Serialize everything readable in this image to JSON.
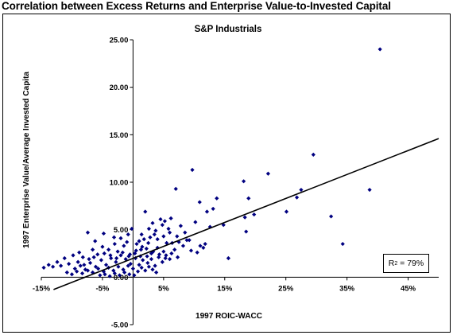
{
  "title": "Correlation between Excess Returns and Enterprise Value-to-Invested Capital",
  "chart_data": {
    "type": "scatter",
    "title": "S&P Industrials",
    "xlabel": "1997 ROIC-WACC",
    "ylabel": "1997 Enterprise Value/Average Invested Capita",
    "xlim": [
      -0.15,
      0.5
    ],
    "ylim": [
      -5,
      25
    ],
    "x_ticks": [
      "-15%",
      "-5%",
      "5%",
      "15%",
      "25%",
      "35%",
      "45%"
    ],
    "x_tick_values": [
      -0.15,
      -0.05,
      0.05,
      0.15,
      0.25,
      0.35,
      0.45
    ],
    "y_ticks": [
      "25.00",
      "20.00",
      "15.00",
      "10.00",
      "5.00",
      "0.00",
      "-5.00"
    ],
    "y_tick_values": [
      25,
      20,
      15,
      10,
      5,
      0,
      -5
    ],
    "trendline": {
      "x": [
        -0.13,
        0.5
      ],
      "y": [
        -1.3,
        14.6
      ]
    },
    "annotation": {
      "label": "R",
      "sup": "2",
      "rest": " = 79%"
    },
    "marker_color": "#000080",
    "line_color": "#000000",
    "points": [
      [
        0.404,
        24.0
      ],
      [
        0.295,
        12.9
      ],
      [
        0.097,
        11.3
      ],
      [
        0.221,
        10.9
      ],
      [
        0.181,
        10.1
      ],
      [
        0.275,
        9.2
      ],
      [
        0.387,
        9.2
      ],
      [
        0.07,
        9.3
      ],
      [
        0.137,
        8.3
      ],
      [
        0.189,
        8.3
      ],
      [
        0.268,
        8.4
      ],
      [
        0.109,
        7.9
      ],
      [
        0.131,
        7.2
      ],
      [
        0.251,
        6.9
      ],
      [
        0.198,
        6.6
      ],
      [
        0.324,
        6.4
      ],
      [
        0.148,
        5.5
      ],
      [
        0.183,
        6.3
      ],
      [
        0.121,
        6.9
      ],
      [
        0.102,
        5.8
      ],
      [
        0.126,
        5.3
      ],
      [
        0.062,
        6.2
      ],
      [
        0.052,
        5.9
      ],
      [
        0.048,
        5.5
      ],
      [
        0.045,
        6.1
      ],
      [
        0.032,
        5.7
      ],
      [
        0.037,
        4.9
      ],
      [
        0.058,
        5.1
      ],
      [
        0.078,
        5.4
      ],
      [
        0.085,
        4.7
      ],
      [
        0.092,
        3.9
      ],
      [
        0.11,
        3.3
      ],
      [
        0.118,
        3.5
      ],
      [
        0.072,
        4.3
      ],
      [
        0.064,
        3.6
      ],
      [
        0.026,
        5.1
      ],
      [
        0.02,
        6.9
      ],
      [
        0.014,
        4.5
      ],
      [
        0.01,
        3.8
      ],
      [
        -0.002,
        5.1
      ],
      [
        -0.008,
        4.5
      ],
      [
        -0.02,
        4.1
      ],
      [
        -0.031,
        4.2
      ],
      [
        -0.048,
        4.6
      ],
      [
        -0.062,
        3.8
      ],
      [
        -0.074,
        4.7
      ],
      [
        -0.05,
        3.2
      ],
      [
        -0.04,
        2.9
      ],
      [
        -0.025,
        2.7
      ],
      [
        -0.015,
        3.3
      ],
      [
        -0.005,
        2.4
      ],
      [
        0.005,
        2.8
      ],
      [
        0.012,
        2.2
      ],
      [
        0.022,
        3.0
      ],
      [
        0.03,
        2.5
      ],
      [
        0.04,
        3.1
      ],
      [
        0.05,
        2.7
      ],
      [
        0.055,
        3.6
      ],
      [
        0.068,
        2.9
      ],
      [
        0.082,
        3.3
      ],
      [
        0.095,
        2.8
      ],
      [
        0.105,
        2.6
      ],
      [
        0.115,
        3.1
      ],
      [
        0.185,
        4.8
      ],
      [
        0.156,
        2.0
      ],
      [
        0.343,
        3.5
      ],
      [
        -0.058,
        2.4
      ],
      [
        -0.066,
        2.9
      ],
      [
        -0.082,
        2.1
      ],
      [
        -0.09,
        1.6
      ],
      [
        -0.098,
        2.3
      ],
      [
        -0.105,
        1.4
      ],
      [
        -0.112,
        2.0
      ],
      [
        -0.118,
        1.2
      ],
      [
        -0.124,
        1.6
      ],
      [
        -0.131,
        1.1
      ],
      [
        -0.138,
        1.3
      ],
      [
        -0.146,
        1.0
      ],
      [
        -0.095,
        0.9
      ],
      [
        -0.086,
        1.2
      ],
      [
        -0.078,
        0.8
      ],
      [
        -0.07,
        1.5
      ],
      [
        -0.061,
        1.1
      ],
      [
        -0.052,
        1.8
      ],
      [
        -0.044,
        1.3
      ],
      [
        -0.036,
        2.0
      ],
      [
        -0.028,
        1.6
      ],
      [
        -0.02,
        2.3
      ],
      [
        -0.012,
        1.9
      ],
      [
        -0.004,
        1.4
      ],
      [
        0.004,
        2.0
      ],
      [
        0.01,
        1.3
      ],
      [
        0.016,
        1.8
      ],
      [
        0.024,
        1.5
      ],
      [
        0.03,
        1.9
      ],
      [
        0.036,
        1.2
      ],
      [
        0.042,
        2.1
      ],
      [
        0.048,
        1.6
      ],
      [
        0.054,
        2.3
      ],
      [
        0.06,
        1.9
      ],
      [
        -0.108,
        0.5
      ],
      [
        -0.1,
        0.3
      ],
      [
        -0.092,
        0.6
      ],
      [
        -0.083,
        0.4
      ],
      [
        -0.074,
        0.7
      ],
      [
        -0.066,
        0.5
      ],
      [
        -0.057,
        0.9
      ],
      [
        -0.048,
        0.6
      ],
      [
        -0.04,
        1.0
      ],
      [
        -0.032,
        0.7
      ],
      [
        -0.024,
        1.1
      ],
      [
        -0.016,
        0.8
      ],
      [
        -0.008,
        1.2
      ],
      [
        0.0,
        0.9
      ],
      [
        0.008,
        0.6
      ],
      [
        0.014,
        1.0
      ],
      [
        0.02,
        0.7
      ],
      [
        0.026,
        1.1
      ],
      [
        0.032,
        0.8
      ],
      [
        0.038,
        0.5
      ],
      [
        -0.054,
        0.2
      ],
      [
        -0.046,
        0.3
      ],
      [
        -0.038,
        0.1
      ],
      [
        -0.03,
        0.4
      ],
      [
        -0.022,
        0.2
      ],
      [
        -0.014,
        0.5
      ],
      [
        -0.006,
        0.3
      ],
      [
        0.002,
        0.2
      ],
      [
        -0.072,
        1.9
      ],
      [
        -0.064,
        2.1
      ],
      [
        -0.08,
        1.3
      ],
      [
        -0.088,
        2.6
      ],
      [
        -0.047,
        2.5
      ],
      [
        -0.037,
        2.3
      ],
      [
        -0.027,
        2.0
      ],
      [
        -0.017,
        2.6
      ],
      [
        -0.007,
        2.2
      ],
      [
        0.003,
        2.5
      ],
      [
        0.013,
        2.9
      ],
      [
        0.023,
        2.2
      ],
      [
        0.033,
        2.7
      ],
      [
        0.043,
        2.4
      ],
      [
        0.053,
        2.0
      ],
      [
        0.063,
        2.5
      ],
      [
        0.073,
        2.1
      ],
      [
        0.025,
        3.6
      ],
      [
        0.015,
        3.2
      ],
      [
        0.006,
        3.5
      ],
      [
        -0.01,
        3.7
      ],
      [
        -0.03,
        3.5
      ],
      [
        0.04,
        4.0
      ],
      [
        0.05,
        4.3
      ],
      [
        0.06,
        4.7
      ],
      [
        0.035,
        4.5
      ],
      [
        0.028,
        4.2
      ],
      [
        0.018,
        4.0
      ],
      [
        0.075,
        3.7
      ],
      [
        0.088,
        3.9
      ]
    ]
  }
}
